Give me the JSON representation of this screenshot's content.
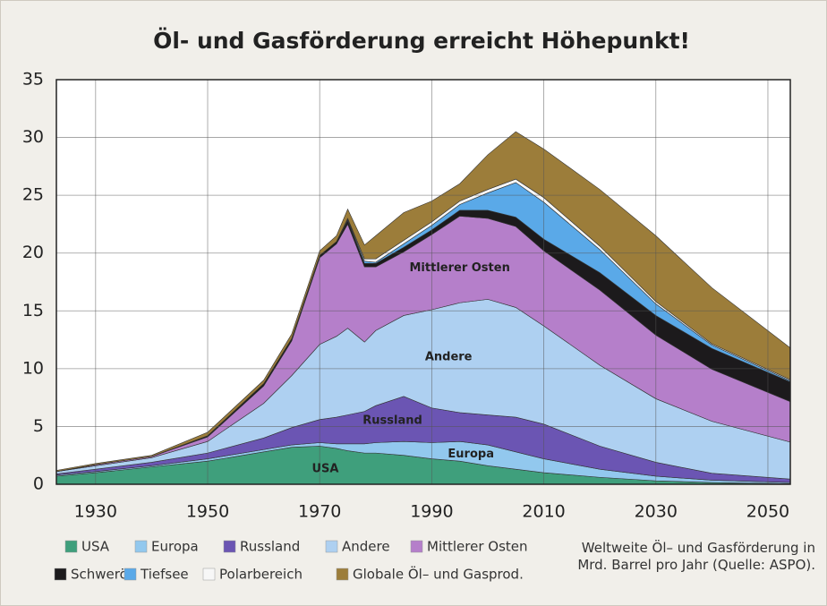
{
  "chart_data": {
    "type": "stacked_area",
    "title": "Öl- und Gasförderung erreicht Höhepunkt!",
    "note": "Weltweite Öl– und Gasförderung in Mrd. Barrel pro Jahr (Quelle: ASPO).",
    "x": [
      1923,
      1930,
      1940,
      1950,
      1960,
      1965,
      1970,
      1973,
      1975,
      1978,
      1980,
      1985,
      1990,
      1995,
      2000,
      2005,
      2010,
      2020,
      2030,
      2040,
      2054
    ],
    "xlim": [
      1923,
      2054
    ],
    "xticks": [
      1930,
      1950,
      1970,
      1990,
      2010,
      2030,
      2050
    ],
    "ylim": [
      0,
      35
    ],
    "yticks": [
      0,
      5,
      10,
      15,
      20,
      25,
      30,
      35
    ],
    "grid": true,
    "series": [
      {
        "name": "USA",
        "color": "#3f9f7c",
        "values": [
          0.7,
          1,
          1.5,
          2,
          2.8,
          3.2,
          3.3,
          3.1,
          2.9,
          2.7,
          2.7,
          2.5,
          2.2,
          2,
          1.6,
          1.3,
          1,
          0.6,
          0.3,
          0.15,
          0.05
        ]
      },
      {
        "name": "Europa",
        "color": "#92c8ee",
        "values": [
          0.1,
          0.1,
          0.1,
          0.2,
          0.2,
          0.2,
          0.3,
          0.4,
          0.6,
          0.8,
          0.9,
          1.2,
          1.4,
          1.7,
          1.8,
          1.5,
          1.2,
          0.7,
          0.4,
          0.2,
          0.1
        ]
      },
      {
        "name": "Russland",
        "color": "#6b55b3",
        "values": [
          0.1,
          0.2,
          0.3,
          0.5,
          1,
          1.5,
          2,
          2.3,
          2.5,
          2.8,
          3.2,
          3.9,
          3,
          2.5,
          2.6,
          3,
          3,
          2,
          1.2,
          0.6,
          0.3
        ]
      },
      {
        "name": "Andere",
        "color": "#aed0f1",
        "values": [
          0.2,
          0.3,
          0.4,
          1,
          3,
          4.5,
          6.5,
          7,
          7.5,
          6,
          6.5,
          7,
          8.5,
          9.5,
          10,
          9.5,
          8.5,
          7,
          5.5,
          4.5,
          3.2
        ]
      },
      {
        "name": "Mittlerer Osten",
        "color": "#b57fca",
        "values": [
          0,
          0.1,
          0.1,
          0.4,
          1.5,
          3,
          7.5,
          8,
          9,
          6.5,
          5.5,
          5.5,
          6.5,
          7.5,
          7,
          7,
          6.5,
          6.5,
          5.5,
          4.5,
          3.5
        ]
      },
      {
        "name": "Schweröl",
        "color": "#1c1a1c",
        "values": [
          0,
          0,
          0,
          0.1,
          0.2,
          0.2,
          0.2,
          0.2,
          0.3,
          0.3,
          0.3,
          0.4,
          0.4,
          0.5,
          0.7,
          0.8,
          1,
          1.5,
          1.7,
          1.8,
          1.7
        ]
      },
      {
        "name": "Tiefsee",
        "color": "#5aa9e8",
        "values": [
          0,
          0,
          0,
          0,
          0,
          0,
          0,
          0,
          0.1,
          0.2,
          0.1,
          0.3,
          0.4,
          0.5,
          1.5,
          3,
          3.2,
          2,
          1,
          0.3,
          0.1
        ]
      },
      {
        "name": "Polarbereich",
        "color": "#f7f7f7",
        "values": [
          0,
          0,
          0,
          0,
          0,
          0,
          0,
          0,
          0.1,
          0.2,
          0.3,
          0.3,
          0.3,
          0.3,
          0.3,
          0.3,
          0.4,
          0.3,
          0.2,
          0.1,
          0.1
        ]
      },
      {
        "name": "Globale Öl– und Gasprod.",
        "color": "#9c7d3a",
        "values": [
          0.1,
          0.1,
          0.1,
          0.3,
          0.3,
          0.4,
          0.4,
          0.5,
          0.8,
          1.2,
          2,
          2.4,
          1.8,
          1.5,
          3,
          4.1,
          4.2,
          4.9,
          5.7,
          4.85,
          2.75
        ]
      }
    ],
    "annotations": [
      "USA",
      "Europa",
      "Russland",
      "Andere",
      "Mittlerer Osten"
    ]
  }
}
